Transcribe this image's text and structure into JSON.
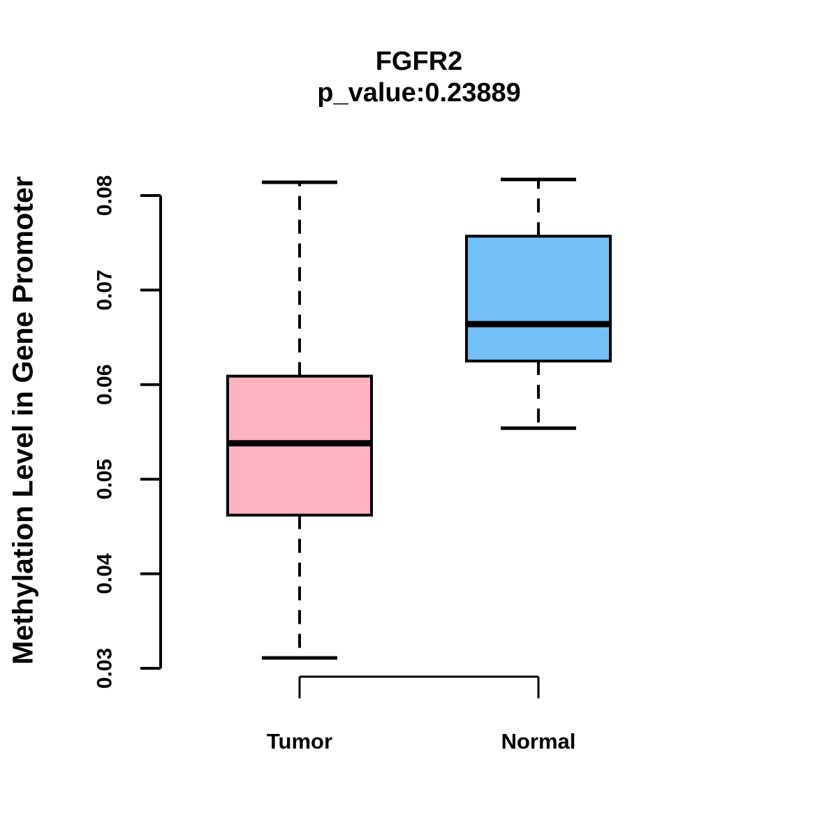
{
  "header": {
    "title": "FGFR2",
    "subtitle": "p_value:0.23889"
  },
  "chart_data": {
    "type": "boxplot",
    "title": "FGFR2",
    "subtitle": "p_value:0.23889",
    "xlabel": "",
    "ylabel": "Methylation Level in Gene Promoter",
    "categories": [
      "Tumor",
      "Normal"
    ],
    "series": [
      {
        "name": "Tumor",
        "color": "#FFB3C1",
        "whisker_low": 0.0311,
        "q1": 0.0462,
        "median": 0.0538,
        "q3": 0.0609,
        "whisker_high": 0.0814
      },
      {
        "name": "Normal",
        "color": "#73BFF8",
        "whisker_low": 0.0554,
        "q1": 0.0625,
        "median": 0.0664,
        "q3": 0.0757,
        "whisker_high": 0.0817
      }
    ],
    "yticks": [
      0.03,
      0.04,
      0.05,
      0.06,
      0.07,
      0.08
    ],
    "ylim": [
      0.027,
      0.083
    ],
    "grid": false,
    "legend": "none",
    "axis_color": "#000000",
    "whisker_style": "dashed"
  }
}
